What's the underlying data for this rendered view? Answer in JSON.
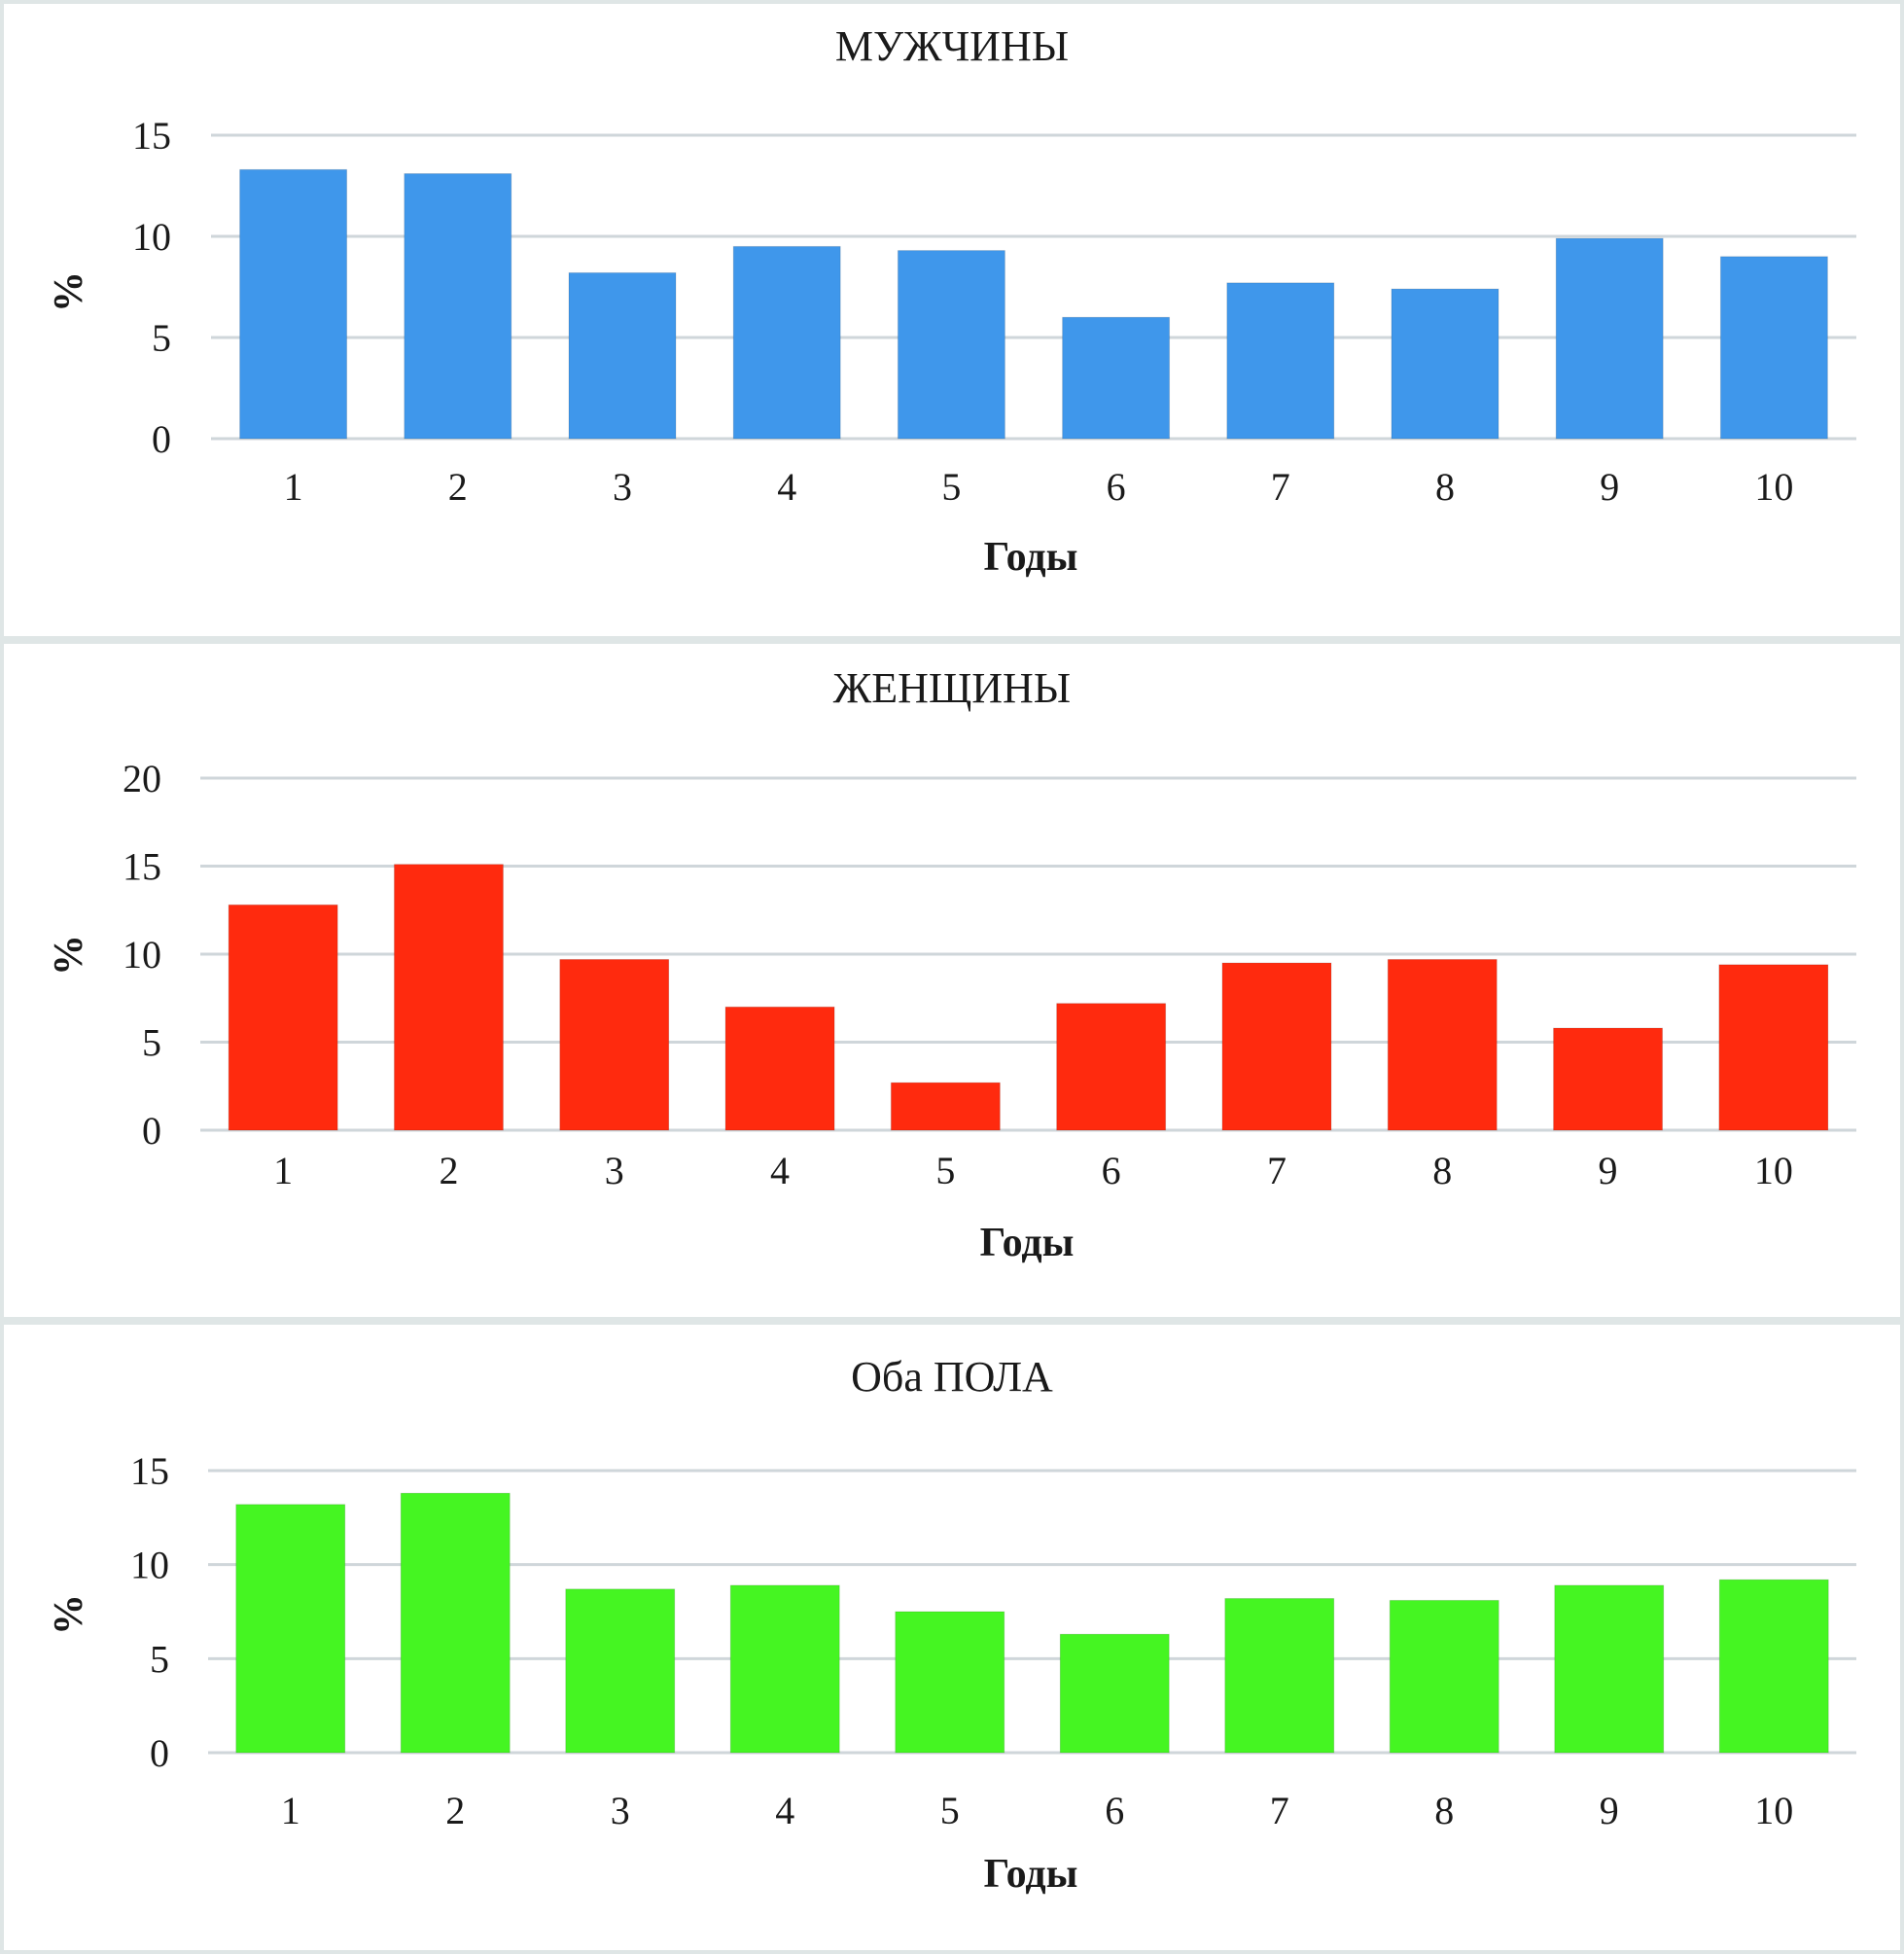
{
  "chart_data": [
    {
      "type": "bar",
      "title": "МУЖЧИНЫ",
      "xlabel": "Годы",
      "ylabel": "%",
      "ylim": [
        0,
        15
      ],
      "yticks": [
        "0",
        "5",
        "10",
        "15"
      ],
      "categories": [
        "1",
        "2",
        "3",
        "4",
        "5",
        "6",
        "7",
        "8",
        "9",
        "10"
      ],
      "values": [
        13.3,
        13.1,
        8.2,
        9.5,
        9.3,
        6.0,
        7.7,
        7.4,
        9.9,
        9.0
      ],
      "color": "#3f97eb",
      "grid": true
    },
    {
      "type": "bar",
      "title": "ЖЕНЩИНЫ",
      "xlabel": "Годы",
      "ylabel": "%",
      "ylim": [
        0,
        20
      ],
      "yticks": [
        "0",
        "5",
        "10",
        "15",
        "20"
      ],
      "categories": [
        "1",
        "2",
        "3",
        "4",
        "5",
        "6",
        "7",
        "8",
        "9",
        "10"
      ],
      "values": [
        12.8,
        15.1,
        9.7,
        7.0,
        2.7,
        7.2,
        9.5,
        9.7,
        5.8,
        9.4
      ],
      "color": "#ff2a0e",
      "grid": true
    },
    {
      "type": "bar",
      "title": "Оба ПОЛА",
      "xlabel": "Годы",
      "ylabel": "%",
      "ylim": [
        0,
        15
      ],
      "yticks": [
        "0",
        "5",
        "10",
        "15"
      ],
      "categories": [
        "1",
        "2",
        "3",
        "4",
        "5",
        "6",
        "7",
        "8",
        "9",
        "10"
      ],
      "values": [
        13.2,
        13.8,
        8.7,
        8.9,
        7.5,
        6.3,
        8.2,
        8.1,
        8.9,
        9.2
      ],
      "color": "#45f522",
      "grid": true
    }
  ]
}
